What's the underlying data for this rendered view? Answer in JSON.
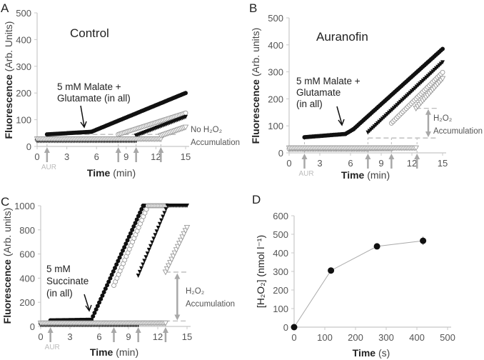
{
  "chart_data": [
    {
      "type": "scatter",
      "panel_label": "A",
      "title": "Control",
      "xlabel_bold": "Time",
      "xlabel_rest": " (min)",
      "ylabel_bold": "Fluorescence",
      "ylabel_rest": " (Arb. Units)",
      "xlim": [
        0,
        15
      ],
      "ylim": [
        0,
        500
      ],
      "xticks": [
        0,
        3,
        6,
        9,
        12,
        15
      ],
      "yticks": [
        0,
        100,
        200,
        300,
        400,
        500
      ],
      "annotation_lines": [
        "5 mM Malate +",
        "Glutamate (in all)"
      ],
      "side_note": [
        "No H₂O₂",
        "Accumulation"
      ],
      "aur_label": "AUR",
      "additions_min": [
        1.0,
        8.2,
        10.0,
        12.5
      ],
      "dashed_levels": [
        {
          "y": 45,
          "x": [
            4,
            14
          ]
        }
      ],
      "accumulation_arrow": null,
      "series": [
        {
          "marker": "filled-circle",
          "segments": [
            [
              [
                1.0,
                45
              ],
              [
                5.5,
                55
              ],
              [
                15,
                200
              ]
            ]
          ]
        },
        {
          "marker": "open-circle",
          "segments": [
            [
              [
                0,
                25
              ],
              [
                8.2,
                25
              ]
            ],
            [
              [
                8.2,
                45
              ],
              [
                15,
                125
              ]
            ]
          ]
        },
        {
          "marker": "filled-triangle",
          "segments": [
            [
              [
                0,
                20
              ],
              [
                10,
                20
              ]
            ],
            [
              [
                10,
                40
              ],
              [
                15,
                110
              ]
            ]
          ]
        },
        {
          "marker": "open-triangle",
          "segments": [
            [
              [
                0,
                28
              ],
              [
                12.5,
                28
              ]
            ],
            [
              [
                12.5,
                40
              ],
              [
                15,
                72
              ]
            ]
          ]
        }
      ]
    },
    {
      "type": "scatter",
      "panel_label": "B",
      "title": "Auranofin",
      "xlabel_bold": "Time",
      "xlabel_rest": " (min)",
      "ylabel_bold": "Fluorescence",
      "ylabel_rest": " (Arb. units)",
      "xlim": [
        0,
        15
      ],
      "ylim": [
        0,
        500
      ],
      "xticks": [
        0,
        3,
        6,
        9,
        12,
        15
      ],
      "yticks": [
        0,
        100,
        200,
        300,
        400,
        500
      ],
      "annotation_lines": [
        "5 mM Malate +",
        "Glutamate",
        "(in all)"
      ],
      "side_note": [
        "H₂O₂",
        "Accumulation"
      ],
      "aur_label": "AUR",
      "additions_min": [
        1.5,
        7.7,
        10.0,
        12.5
      ],
      "dashed_levels": [
        {
          "y": 55,
          "x": [
            7.7,
            14.5
          ]
        },
        {
          "y": 165,
          "x": [
            12.4,
            14.5
          ]
        }
      ],
      "accumulation_arrow": {
        "x": 13.6,
        "from": 58,
        "to": 162
      },
      "series": [
        {
          "marker": "filled-circle",
          "segments": [
            [
              [
                1.5,
                58
              ],
              [
                5.5,
                70
              ],
              [
                6.3,
                88
              ],
              [
                15,
                385
              ]
            ]
          ]
        },
        {
          "marker": "filled-triangle",
          "segments": [
            [
              [
                0,
                12
              ],
              [
                7.7,
                12
              ]
            ],
            [
              [
                7.7,
                75
              ],
              [
                15,
                335
              ]
            ]
          ]
        },
        {
          "marker": "open-circle",
          "segments": [
            [
              [
                0,
                15
              ],
              [
                10,
                15
              ]
            ],
            [
              [
                10,
                110
              ],
              [
                15,
                298
              ]
            ]
          ]
        },
        {
          "marker": "open-triangle",
          "segments": [
            [
              [
                0,
                18
              ],
              [
                12.4,
                18
              ]
            ],
            [
              [
                12.4,
                165
              ],
              [
                15,
                275
              ]
            ]
          ]
        }
      ]
    },
    {
      "type": "scatter",
      "panel_label": "C",
      "title": "",
      "xlabel_bold": "Time",
      "xlabel_rest": " (min)",
      "ylabel_bold": "Fluorescence",
      "ylabel_rest": " (Arb. units)",
      "xlim": [
        0,
        15
      ],
      "ylim": [
        0,
        1000
      ],
      "xticks": [
        0,
        3,
        6,
        9,
        12,
        15
      ],
      "yticks": [
        0,
        200,
        400,
        600,
        800,
        1000
      ],
      "annotation_lines": [
        "5 mM",
        "Succinate",
        "(in all)"
      ],
      "side_note": [
        "H₂O₂",
        "Accumulation"
      ],
      "aur_label": "AUR",
      "additions_min": [
        1.0,
        7.5,
        10.0,
        12.8
      ],
      "dashed_levels": [
        {
          "y": 45,
          "x": [
            5.5,
            15
          ]
        },
        {
          "y": 450,
          "x": [
            12.8,
            15
          ]
        }
      ],
      "accumulation_arrow": {
        "x": 14.0,
        "from": 50,
        "to": 440
      },
      "series": [
        {
          "marker": "filled-circle",
          "segments": [
            [
              [
                1.0,
                50
              ],
              [
                5.2,
                55
              ],
              [
                10.5,
                1000
              ],
              [
                11,
                1000
              ]
            ]
          ]
        },
        {
          "marker": "open-circle",
          "segments": [
            [
              [
                0,
                25
              ],
              [
                7.5,
                25
              ]
            ],
            [
              [
                7.5,
                340
              ],
              [
                11,
                1000
              ],
              [
                13,
                1000
              ]
            ]
          ]
        },
        {
          "marker": "filled-triangle",
          "segments": [
            [
              [
                0,
                10
              ],
              [
                10,
                10
              ]
            ],
            [
              [
                10,
                420
              ],
              [
                13,
                1000
              ],
              [
                15,
                1000
              ]
            ]
          ]
        },
        {
          "marker": "open-triangle",
          "segments": [
            [
              [
                0,
                28
              ],
              [
                12.8,
                28
              ]
            ],
            [
              [
                12.8,
                450
              ],
              [
                15,
                820
              ]
            ]
          ]
        }
      ]
    },
    {
      "type": "line",
      "panel_label": "D",
      "title": "",
      "xlabel_bold": "Time",
      "xlabel_rest": " (s)",
      "ylabel": "[H₂O₂] (nmol l⁻¹)",
      "xlim": [
        0,
        500
      ],
      "ylim": [
        0,
        600
      ],
      "xticks": [
        0,
        100,
        200,
        300,
        400,
        500
      ],
      "yticks": [
        0,
        100,
        200,
        300,
        400,
        500,
        600
      ],
      "x": [
        0,
        120,
        270,
        420
      ],
      "y": [
        0,
        305,
        435,
        465
      ],
      "yerr": [
        0,
        12,
        8,
        22
      ]
    }
  ]
}
